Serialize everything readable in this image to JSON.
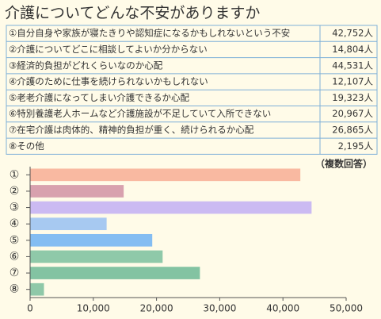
{
  "title": "介護についてどんな不安がありますか",
  "table": {
    "rows": [
      [
        "①自分自身や家族が寝たきりや認知症になるかもしれないという不安",
        "42,752人"
      ],
      [
        "②介護についてどこに相談してよいか分からない",
        "14,804人"
      ],
      [
        "③経済的負担がどれくらいなのか心配",
        "44,531人"
      ],
      [
        "④介護のために仕事を続けられないかもしれない",
        "12,107人"
      ],
      [
        "⑤老老介護になってしまい介護できるか心配",
        "19,323人"
      ],
      [
        "⑥特別養護老人ホームなど介護施設が不足していて入所できない",
        "20,967人"
      ],
      [
        "⑦在宅介護は肉体的、精神的負担が重く、続けられるか心配",
        "26,865人"
      ],
      [
        "⑧その他",
        "2,195人"
      ]
    ]
  },
  "chart_data": {
    "type": "barh",
    "note": "（複数回答）",
    "categories": [
      "①",
      "②",
      "③",
      "④",
      "⑤",
      "⑥",
      "⑦",
      "⑧"
    ],
    "values": [
      42752,
      14804,
      44531,
      12107,
      19323,
      20967,
      26865,
      2195
    ],
    "colors": [
      "#f9b9a1",
      "#d8a1ae",
      "#cbbaf2",
      "#a7c9f1",
      "#84bdf2",
      "#8fc9a9",
      "#83c3a2",
      "#8fc8a8"
    ],
    "xlim": [
      0,
      50000
    ],
    "xticks": [
      0,
      {
        "value": 10000,
        "label": "10,000"
      },
      {
        "value": 20000,
        "label": "20,000"
      },
      {
        "value": 30000,
        "label": "30,000"
      },
      {
        "value": 40000,
        "label": "40,000"
      },
      {
        "value": 50000,
        "label": "50,000"
      }
    ]
  }
}
